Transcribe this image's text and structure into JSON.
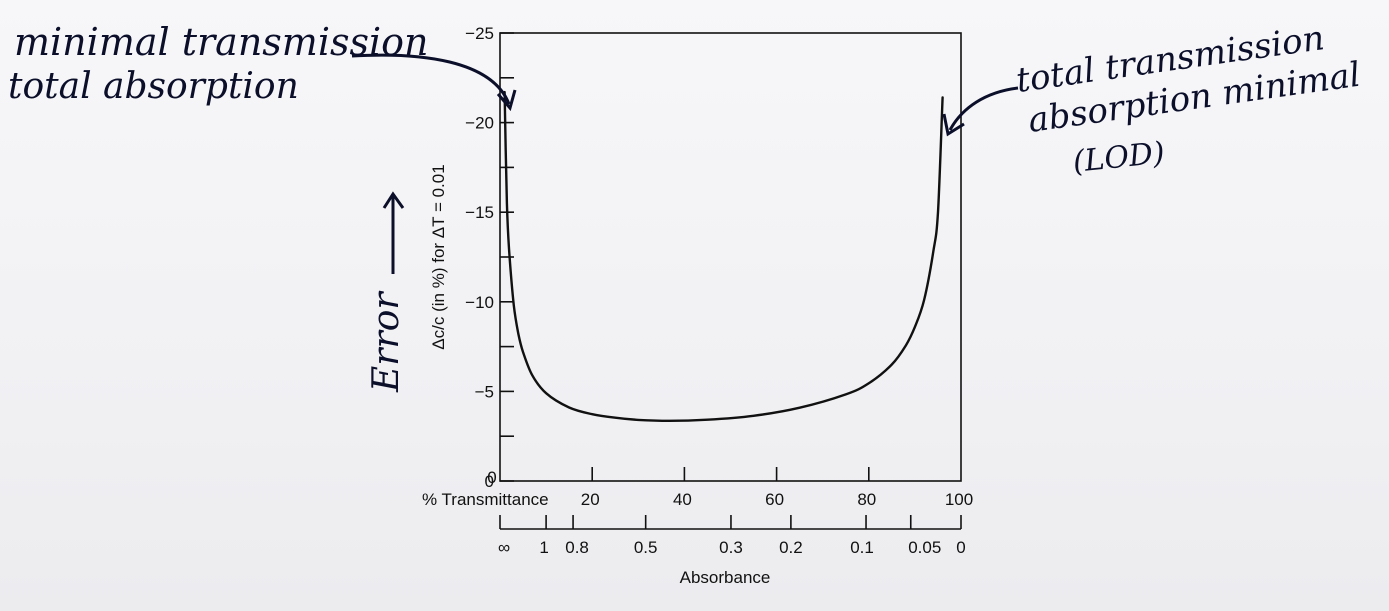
{
  "chart_data": {
    "type": "line",
    "ylabel": "Δc/c (in %) for ΔT = 0.01",
    "xlabel_top": "% Transmittance",
    "xlabel_bottom": "Absorbance",
    "xlim": [
      0,
      100
    ],
    "ylim": [
      0,
      -25
    ],
    "y_ticks": [
      0,
      -5,
      -10,
      -15,
      -20,
      -25
    ],
    "y_minor_ticks": [
      -2.5,
      -7.5,
      -12.5,
      -17.5,
      -22.5
    ],
    "y_tick_labels": [
      "0",
      "−5",
      "−10",
      "−15",
      "−20",
      "−25"
    ],
    "x_ticks": [
      0,
      20,
      40,
      60,
      80,
      100
    ],
    "x_tick_labels": [
      "0",
      "20",
      "40",
      "60",
      "80",
      "100"
    ],
    "absorbance_ticks": [
      {
        "label": "∞",
        "T": 0
      },
      {
        "label": "1",
        "T": 10
      },
      {
        "label": "0.8",
        "T": 15.85
      },
      {
        "label": "0.5",
        "T": 31.6
      },
      {
        "label": "0.3",
        "T": 50.1
      },
      {
        "label": "0.2",
        "T": 63.1
      },
      {
        "label": "0.1",
        "T": 79.4
      },
      {
        "label": "0.05",
        "T": 89.1
      },
      {
        "label": "0",
        "T": 100
      }
    ],
    "series": [
      {
        "x": [
          1,
          1.5,
          2,
          3,
          4,
          5,
          7,
          10,
          15,
          20,
          25,
          30,
          36.8,
          45,
          55,
          65,
          75,
          80,
          85,
          88,
          90,
          92,
          94,
          95,
          96
        ],
        "y": [
          -21.7,
          -15.5,
          -12.8,
          -9.8,
          -8.2,
          -7.2,
          -5.9,
          -4.9,
          -4.1,
          -3.73,
          -3.53,
          -3.41,
          -3.36,
          -3.42,
          -3.64,
          -4.09,
          -4.83,
          -5.45,
          -6.5,
          -7.55,
          -8.6,
          -10.1,
          -12.8,
          -15.0,
          -21.4
        ]
      }
    ]
  },
  "annotations": {
    "left_line1": "minimal transmission",
    "left_line2": "total absorption",
    "right_line1": "total transmission",
    "right_line2": "absorption minimal",
    "right_line3": "(LOD)",
    "error_label": "Error"
  }
}
